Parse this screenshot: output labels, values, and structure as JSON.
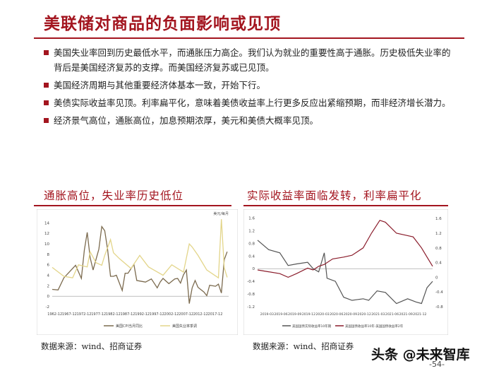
{
  "page": {
    "title": "美联储对商品的负面影响或见顶",
    "bullets": [
      "美国失业率回到历史最低水平，而通胀压力高企。我们认为就业的重要性高于通胀。历史极低失业率的背后是美国经济复苏的支撑。而美国经济复苏或已见顶。",
      "美国经济周期与其他重要经济体基本一致，开始下行。",
      "美债实际收益率见顶。利率扁平化，意味着美债收益率上行更多反应出紧缩预期，而非经济增长潜力。",
      "经济景气高位，通胀高位，加息预期浓厚，美元和美债大概率见顶。"
    ],
    "page_number": "-54-",
    "watermark": "头条 @未来智库"
  },
  "charts": {
    "left": {
      "title": "通胀高位，失业率历史低位",
      "source": "数据来源：wind、招商证券"
    },
    "right": {
      "title": "实际收益率面临发转，利率扁平化",
      "source": "数据来源：wind、招商证券"
    }
  },
  "chart_data": [
    {
      "type": "line",
      "title": "通胀高位，失业率历史低位",
      "y_unit": "美元/每月",
      "x_ticks": [
        "1962-12",
        "1967-12",
        "1972-12",
        "1977-12",
        "1982-12",
        "1987-12",
        "1992-12",
        "1997-12",
        "2002-12",
        "2007-12",
        "2012-12",
        "2017-12"
      ],
      "y_ticks": [
        -2,
        0,
        2,
        4,
        6,
        8,
        10,
        12,
        14
      ],
      "ylim": [
        -2,
        15
      ],
      "series": [
        {
          "name": "美国CPI当月同比",
          "color": "#7b6a4e",
          "x": [
            1962,
            1964,
            1966,
            1968,
            1970,
            1972,
            1973,
            1974,
            1975,
            1976,
            1978,
            1979,
            1980,
            1981,
            1982,
            1983,
            1984,
            1986,
            1987,
            1988,
            1990,
            1991,
            1992,
            1994,
            1996,
            1998,
            1999,
            2000,
            2002,
            2004,
            2005,
            2006,
            2007,
            2008,
            2009,
            2010,
            2011,
            2012,
            2014,
            2015,
            2016,
            2018,
            2019,
            2020,
            2021,
            2022
          ],
          "values": [
            1.3,
            1.2,
            3.5,
            4.7,
            5.9,
            3.4,
            8.8,
            12.2,
            7.4,
            5.0,
            9.0,
            13.3,
            12.5,
            8.9,
            3.8,
            3.8,
            4.0,
            1.1,
            4.4,
            4.4,
            6.1,
            3.0,
            2.9,
            2.7,
            3.3,
            1.6,
            2.7,
            3.4,
            2.4,
            3.3,
            3.4,
            2.5,
            4.1,
            5.0,
            -1.4,
            1.6,
            3.0,
            1.7,
            0.8,
            0.1,
            2.1,
            1.9,
            2.3,
            0.6,
            7.0,
            8.5
          ]
        },
        {
          "name": "美国失业率季调",
          "color": "#e3d58a",
          "x": [
            1962,
            1966,
            1969,
            1971,
            1974,
            1975,
            1977,
            1979,
            1980,
            1982,
            1983,
            1985,
            1989,
            1992,
            1995,
            2000,
            2003,
            2007,
            2009,
            2010,
            2012,
            2015,
            2019,
            2020,
            2021,
            2022
          ],
          "values": [
            5.5,
            3.8,
            3.5,
            6.0,
            5.6,
            8.5,
            6.4,
            5.9,
            7.8,
            10.8,
            8.3,
            7.2,
            5.3,
            7.8,
            5.6,
            4.0,
            6.0,
            4.6,
            10.0,
            9.4,
            7.8,
            5.0,
            3.5,
            14.7,
            5.4,
            3.6
          ]
        }
      ]
    },
    {
      "type": "line",
      "title": "实际收益率面临发转，利率扁平化",
      "x_ticks": [
        "2019-03",
        "2019-06",
        "2019-09",
        "2019-12",
        "2020-03",
        "2020-06",
        "2020-09",
        "2020-12",
        "2021-03",
        "2021-06",
        "2021-09",
        "2021-12"
      ],
      "y_left_ticks": [
        -1.2,
        -0.8,
        -0.4,
        0,
        0.4,
        0.8,
        1.2,
        1.6
      ],
      "y_left_lim": [
        -1.2,
        1.7
      ],
      "y_right_ticks": [
        -0.8,
        -0.4,
        0,
        0.4,
        0.8,
        1.2,
        1.6
      ],
      "y_right_lim": [
        -0.8,
        1.7
      ],
      "series": [
        {
          "name": "美国国债实际收益率10年期",
          "axis": "left",
          "color": "#555555",
          "x": [
            2019.0,
            2019.2,
            2019.4,
            2019.55,
            2019.7,
            2019.9,
            2020.0,
            2020.1,
            2020.2,
            2020.25,
            2020.4,
            2020.55,
            2020.7,
            2020.9,
            2021.0,
            2021.15,
            2021.3,
            2021.5,
            2021.7,
            2021.85,
            2021.95,
            2022.05,
            2022.15
          ],
          "values": [
            0.9,
            0.6,
            0.5,
            0.1,
            0.15,
            0.2,
            0.0,
            -0.1,
            0.5,
            -0.3,
            -0.4,
            -0.9,
            -1.0,
            -0.95,
            -1.0,
            -0.7,
            -0.75,
            -1.1,
            -0.95,
            -1.05,
            -1.1,
            -0.6,
            -0.4
          ]
        },
        {
          "name": "美国国债收益率10年-美国国债收益率2年",
          "axis": "right",
          "color": "#8a1c2b",
          "x": [
            2019.0,
            2019.2,
            2019.4,
            2019.55,
            2019.7,
            2019.9,
            2020.0,
            2020.1,
            2020.2,
            2020.35,
            2020.55,
            2020.7,
            2020.9,
            2021.05,
            2021.2,
            2021.3,
            2021.5,
            2021.65,
            2021.8,
            2021.95,
            2022.05,
            2022.15
          ],
          "values": [
            0.2,
            0.15,
            0.1,
            0.0,
            0.1,
            0.25,
            0.2,
            0.3,
            0.35,
            0.5,
            0.55,
            0.6,
            0.8,
            1.2,
            1.55,
            1.5,
            1.2,
            1.15,
            1.1,
            0.8,
            0.55,
            0.3
          ]
        }
      ]
    }
  ]
}
